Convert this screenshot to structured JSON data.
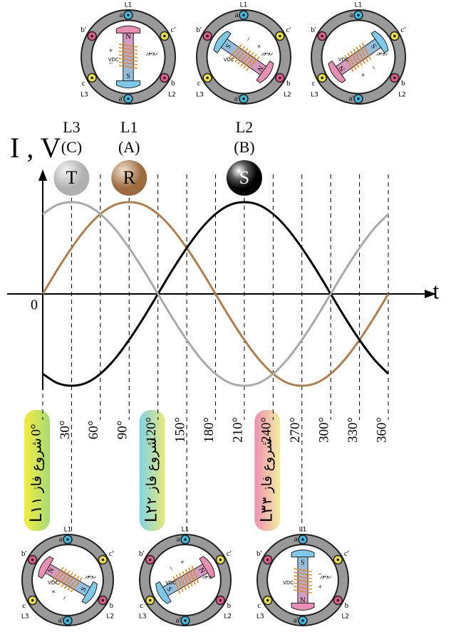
{
  "chart_data": {
    "type": "line",
    "axis_labels": {
      "y": "I , V",
      "x": "t",
      "origin": "0"
    },
    "x": [
      0,
      15,
      30,
      45,
      60,
      75,
      90,
      105,
      120,
      135,
      150,
      165,
      180,
      195,
      210,
      225,
      240,
      255,
      270,
      285,
      300,
      315,
      330,
      345,
      360
    ],
    "xlim": [
      0,
      360
    ],
    "ylim": [
      -1,
      1
    ],
    "xticks": [
      {
        "value": 0,
        "label": "0°"
      },
      {
        "value": 30,
        "label": "30°"
      },
      {
        "value": 60,
        "label": "60°"
      },
      {
        "value": 90,
        "label": "90°"
      },
      {
        "value": 120,
        "label": "120°"
      },
      {
        "value": 150,
        "label": "150°"
      },
      {
        "value": 180,
        "label": "180°"
      },
      {
        "value": 210,
        "label": "210°"
      },
      {
        "value": 240,
        "label": "240°"
      },
      {
        "value": 270,
        "label": "270°"
      },
      {
        "value": 300,
        "label": "300°"
      },
      {
        "value": 330,
        "label": "330°"
      },
      {
        "value": 360,
        "label": "360°"
      }
    ],
    "series": [
      {
        "name": "R",
        "color": "#b07f4f",
        "line": "L1",
        "phase": "(A)",
        "values": [
          0,
          0.26,
          0.5,
          0.71,
          0.87,
          0.97,
          1,
          0.97,
          0.87,
          0.71,
          0.5,
          0.26,
          0,
          -0.26,
          -0.5,
          -0.71,
          -0.87,
          -0.97,
          -1,
          -0.97,
          -0.87,
          -0.71,
          -0.5,
          -0.26,
          0
        ]
      },
      {
        "name": "S",
        "color": "#000000",
        "line": "L2",
        "phase": "(B)",
        "values": [
          -0.87,
          -0.97,
          -1,
          -0.97,
          -0.87,
          -0.71,
          -0.5,
          -0.26,
          0,
          0.26,
          0.5,
          0.71,
          0.87,
          0.97,
          1,
          0.97,
          0.87,
          0.71,
          0.5,
          0.26,
          0,
          -0.26,
          -0.5,
          -0.71,
          -0.87
        ]
      },
      {
        "name": "T",
        "color": "#aaaaaa",
        "line": "L3",
        "phase": "(C)",
        "values": [
          0.87,
          0.97,
          1,
          0.97,
          0.87,
          0.71,
          0.5,
          0.26,
          0,
          -0.26,
          -0.5,
          -0.71,
          -0.87,
          -0.97,
          -1,
          -0.97,
          -0.87,
          -0.71,
          -0.5,
          -0.26,
          0,
          0.26,
          0.5,
          0.71,
          0.87
        ]
      }
    ],
    "phase_starts": [
      {
        "x": 0,
        "text": "شروع فاز ۱",
        "line": "L۱",
        "colors": [
          "#f4ec3c",
          "#a7db78"
        ]
      },
      {
        "x": 120,
        "text": "شروع فاز ۲",
        "line": "L۲",
        "colors": [
          "#7fd3e8",
          "#e8e87a"
        ]
      },
      {
        "x": 240,
        "text": "شروع فاز ۳",
        "line": "L۳",
        "colors": [
          "#ee8fb3",
          "#f2eea0"
        ]
      }
    ]
  },
  "motor_labels": {
    "a": "a",
    "a_prime": "a'",
    "b": "b",
    "b_prime": "b'",
    "c": "c",
    "c_prime": "c'",
    "L1": "L1",
    "L2": "L2",
    "L3": "L3",
    "N": "N",
    "S": "S",
    "vdc": "VDC",
    "rotor": "روتور",
    "plus": "+",
    "minus": "−"
  }
}
